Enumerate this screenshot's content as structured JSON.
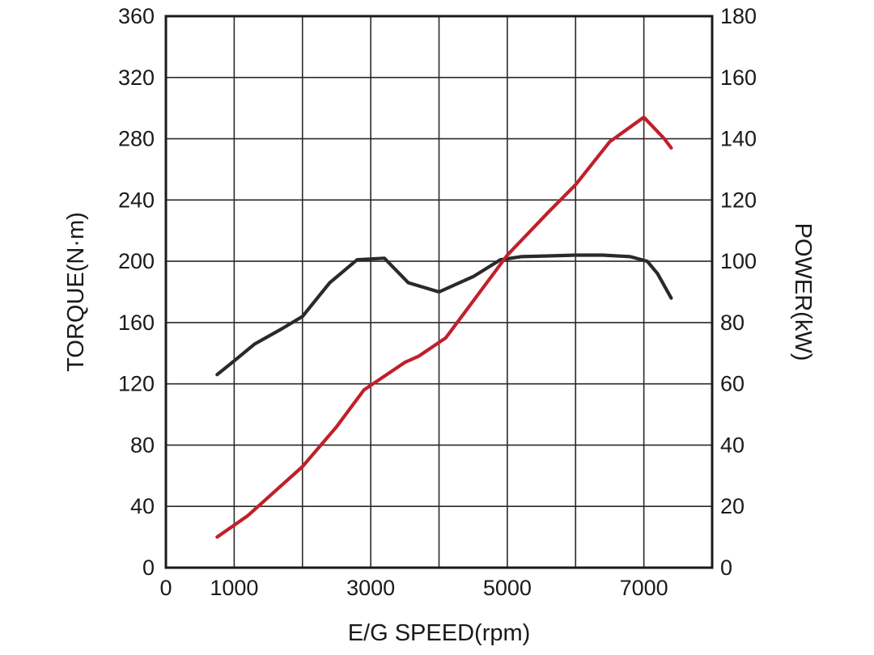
{
  "chart_data": {
    "type": "line",
    "xlabel": "E/G SPEED(rpm)",
    "ylabel_left": "TORQUE(N·m)",
    "ylabel_right": "POWER(kW)",
    "xlim": [
      0,
      8000
    ],
    "ylim_left": [
      0,
      360
    ],
    "ylim_right": [
      0,
      180
    ],
    "x_ticks": [
      0,
      1000,
      3000,
      5000,
      7000
    ],
    "y_ticks_left": [
      0,
      40,
      80,
      120,
      160,
      200,
      240,
      280,
      320,
      360
    ],
    "y_ticks_right": [
      0,
      20,
      40,
      60,
      80,
      100,
      120,
      140,
      160,
      180
    ],
    "grid": true,
    "series": [
      {
        "axis": "left",
        "color": "#2a2a2a",
        "points": [
          [
            750,
            126
          ],
          [
            1000,
            135
          ],
          [
            1300,
            146
          ],
          [
            1700,
            156
          ],
          [
            2000,
            164
          ],
          [
            2400,
            186
          ],
          [
            2800,
            201
          ],
          [
            3200,
            202
          ],
          [
            3550,
            186
          ],
          [
            4000,
            180
          ],
          [
            4500,
            190
          ],
          [
            4900,
            201
          ],
          [
            5200,
            203
          ],
          [
            5600,
            203.5
          ],
          [
            6000,
            204
          ],
          [
            6400,
            204
          ],
          [
            6800,
            203
          ],
          [
            7050,
            200
          ],
          [
            7200,
            192
          ],
          [
            7400,
            176
          ]
        ]
      },
      {
        "axis": "right",
        "color": "#c0202a",
        "points": [
          [
            750,
            10
          ],
          [
            1200,
            17
          ],
          [
            1600,
            25
          ],
          [
            2000,
            33
          ],
          [
            2500,
            46
          ],
          [
            2900,
            58
          ],
          [
            3500,
            67
          ],
          [
            3700,
            69
          ],
          [
            4100,
            75
          ],
          [
            4600,
            90
          ],
          [
            5000,
            102
          ],
          [
            5600,
            116
          ],
          [
            6000,
            125
          ],
          [
            6500,
            139
          ],
          [
            7000,
            147
          ],
          [
            7300,
            140
          ],
          [
            7400,
            137
          ]
        ]
      }
    ]
  }
}
